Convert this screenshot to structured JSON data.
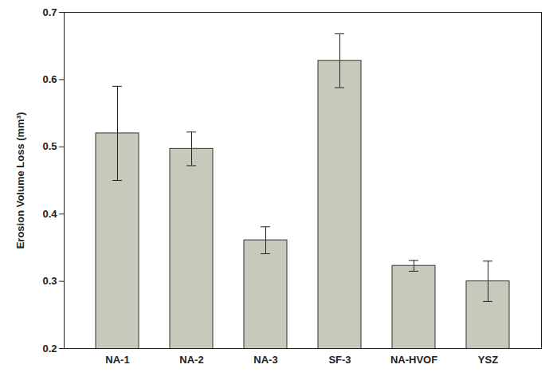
{
  "chart_data": {
    "type": "bar",
    "y_label": "Erosion Volume Loss (mm³)",
    "categories": [
      "NA-1",
      "NA-2",
      "NA-3",
      "SF-3",
      "NA-HVOF",
      "YSZ"
    ],
    "values": [
      0.52,
      0.497,
      0.361,
      0.628,
      0.323,
      0.3
    ],
    "errors": [
      0.07,
      0.025,
      0.02,
      0.04,
      0.008,
      0.03
    ],
    "color": "#c8c9bb",
    "ylim": [
      0.2,
      0.7
    ],
    "yticks": [
      0.2,
      0.3,
      0.4,
      0.5,
      0.6,
      0.7
    ],
    "grid": false
  }
}
